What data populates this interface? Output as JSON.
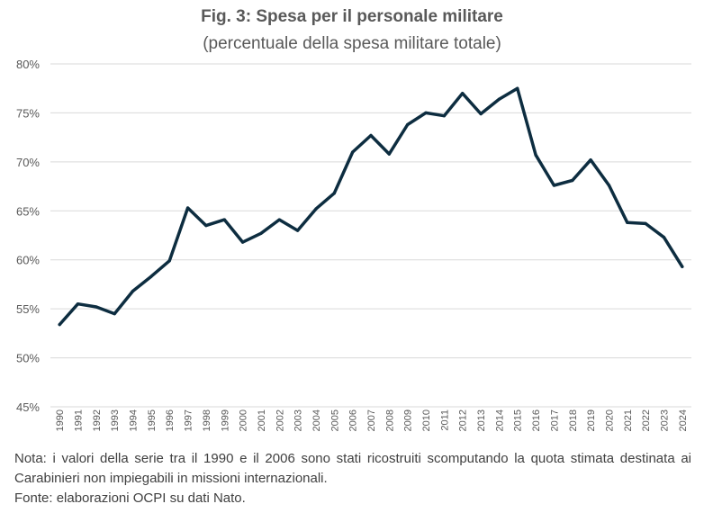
{
  "chart_data": {
    "type": "line",
    "title": "Fig. 3: Spesa per il personale militare",
    "subtitle": "(percentuale della spesa militare totale)",
    "xlabel": "",
    "ylabel": "",
    "ylim": [
      45,
      80
    ],
    "yticks": [
      "80%",
      "75%",
      "70%",
      "65%",
      "60%",
      "55%",
      "50%",
      "45%"
    ],
    "ytick_values": [
      80,
      75,
      70,
      65,
      60,
      55,
      50,
      45
    ],
    "grid": true,
    "legend": "none",
    "line_color": "#0d2d40",
    "x": [
      "1990",
      "1991",
      "1992",
      "1993",
      "1994",
      "1995",
      "1996",
      "1997",
      "1998",
      "1999",
      "2000",
      "2001",
      "2002",
      "2003",
      "2004",
      "2005",
      "2006",
      "2007",
      "2008",
      "2009",
      "2010",
      "2011",
      "2012",
      "2013",
      "2014",
      "2015",
      "2016",
      "2017",
      "2018",
      "2019",
      "2020",
      "2021",
      "2022",
      "2023",
      "2024"
    ],
    "series": [
      {
        "values": [
          53.4,
          55.5,
          55.2,
          54.5,
          56.8,
          58.3,
          59.9,
          65.3,
          63.5,
          64.1,
          61.8,
          62.7,
          64.1,
          63.0,
          65.2,
          66.8,
          71.0,
          72.7,
          70.8,
          73.8,
          75.0,
          74.7,
          77.0,
          74.9,
          76.4,
          77.5,
          70.7,
          67.6,
          68.1,
          70.2,
          67.6,
          63.8,
          63.7,
          62.3,
          59.3
        ]
      }
    ]
  },
  "footnote": {
    "note": "Nota: i valori della serie tra il 1990 e il 2006 sono stati ricostruiti scomputando la quota stimata destinata ai Carabinieri non impiegabili in missioni internazionali.",
    "source": "Fonte: elaborazioni OCPI su dati Nato."
  }
}
